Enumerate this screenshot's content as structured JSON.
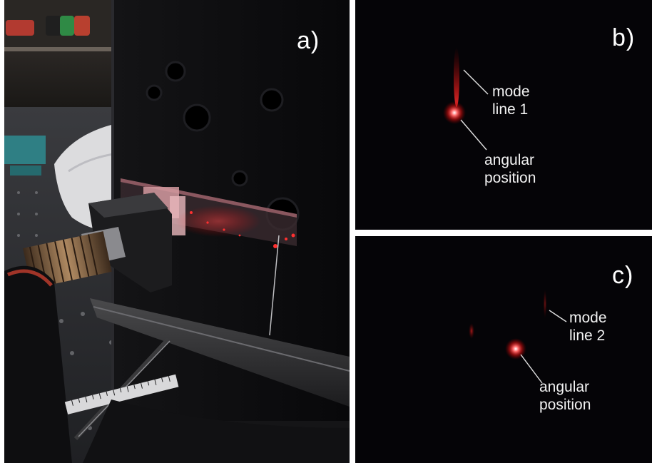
{
  "panels": {
    "a": {
      "label": "a)"
    },
    "b": {
      "label": "b)",
      "annotations": {
        "mode_line": [
          "mode",
          "line 1"
        ],
        "angular_position": [
          "angular",
          "position"
        ]
      }
    },
    "c": {
      "label": "c)",
      "annotations": {
        "mode_line": [
          "mode",
          "line 2"
        ],
        "angular_position": [
          "angular",
          "position"
        ]
      }
    }
  },
  "colors": {
    "background": "#ffffff",
    "laser_red": "#ff2a2a",
    "label_text": "#ffffff"
  }
}
